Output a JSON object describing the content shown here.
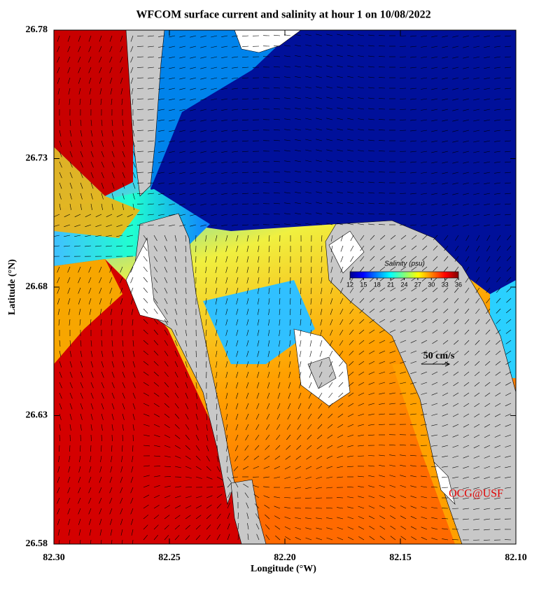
{
  "title": "WFCOM surface current and salinity at hour 1 on 10/08/2022",
  "x_axis": {
    "label": "Longitude (°W)",
    "lim": [
      82.3,
      82.1
    ],
    "ticks": [
      {
        "value": 82.3,
        "label": "82.30"
      },
      {
        "value": 82.25,
        "label": "82.25"
      },
      {
        "value": 82.2,
        "label": "82.20"
      },
      {
        "value": 82.15,
        "label": "82.15"
      },
      {
        "value": 82.1,
        "label": "82.10"
      }
    ]
  },
  "y_axis": {
    "label": "Latitude (°N)",
    "lim": [
      26.58,
      26.78
    ],
    "ticks": [
      26.58,
      26.63,
      26.68,
      26.73,
      26.78
    ]
  },
  "colorbar": {
    "label": "Salinity (psu)",
    "lim": [
      12,
      36
    ],
    "ticks": [
      12,
      15,
      18,
      21,
      24,
      27,
      30,
      33,
      36
    ]
  },
  "scale_arrow": "50 cm/s",
  "credit": "OCG@USF"
}
